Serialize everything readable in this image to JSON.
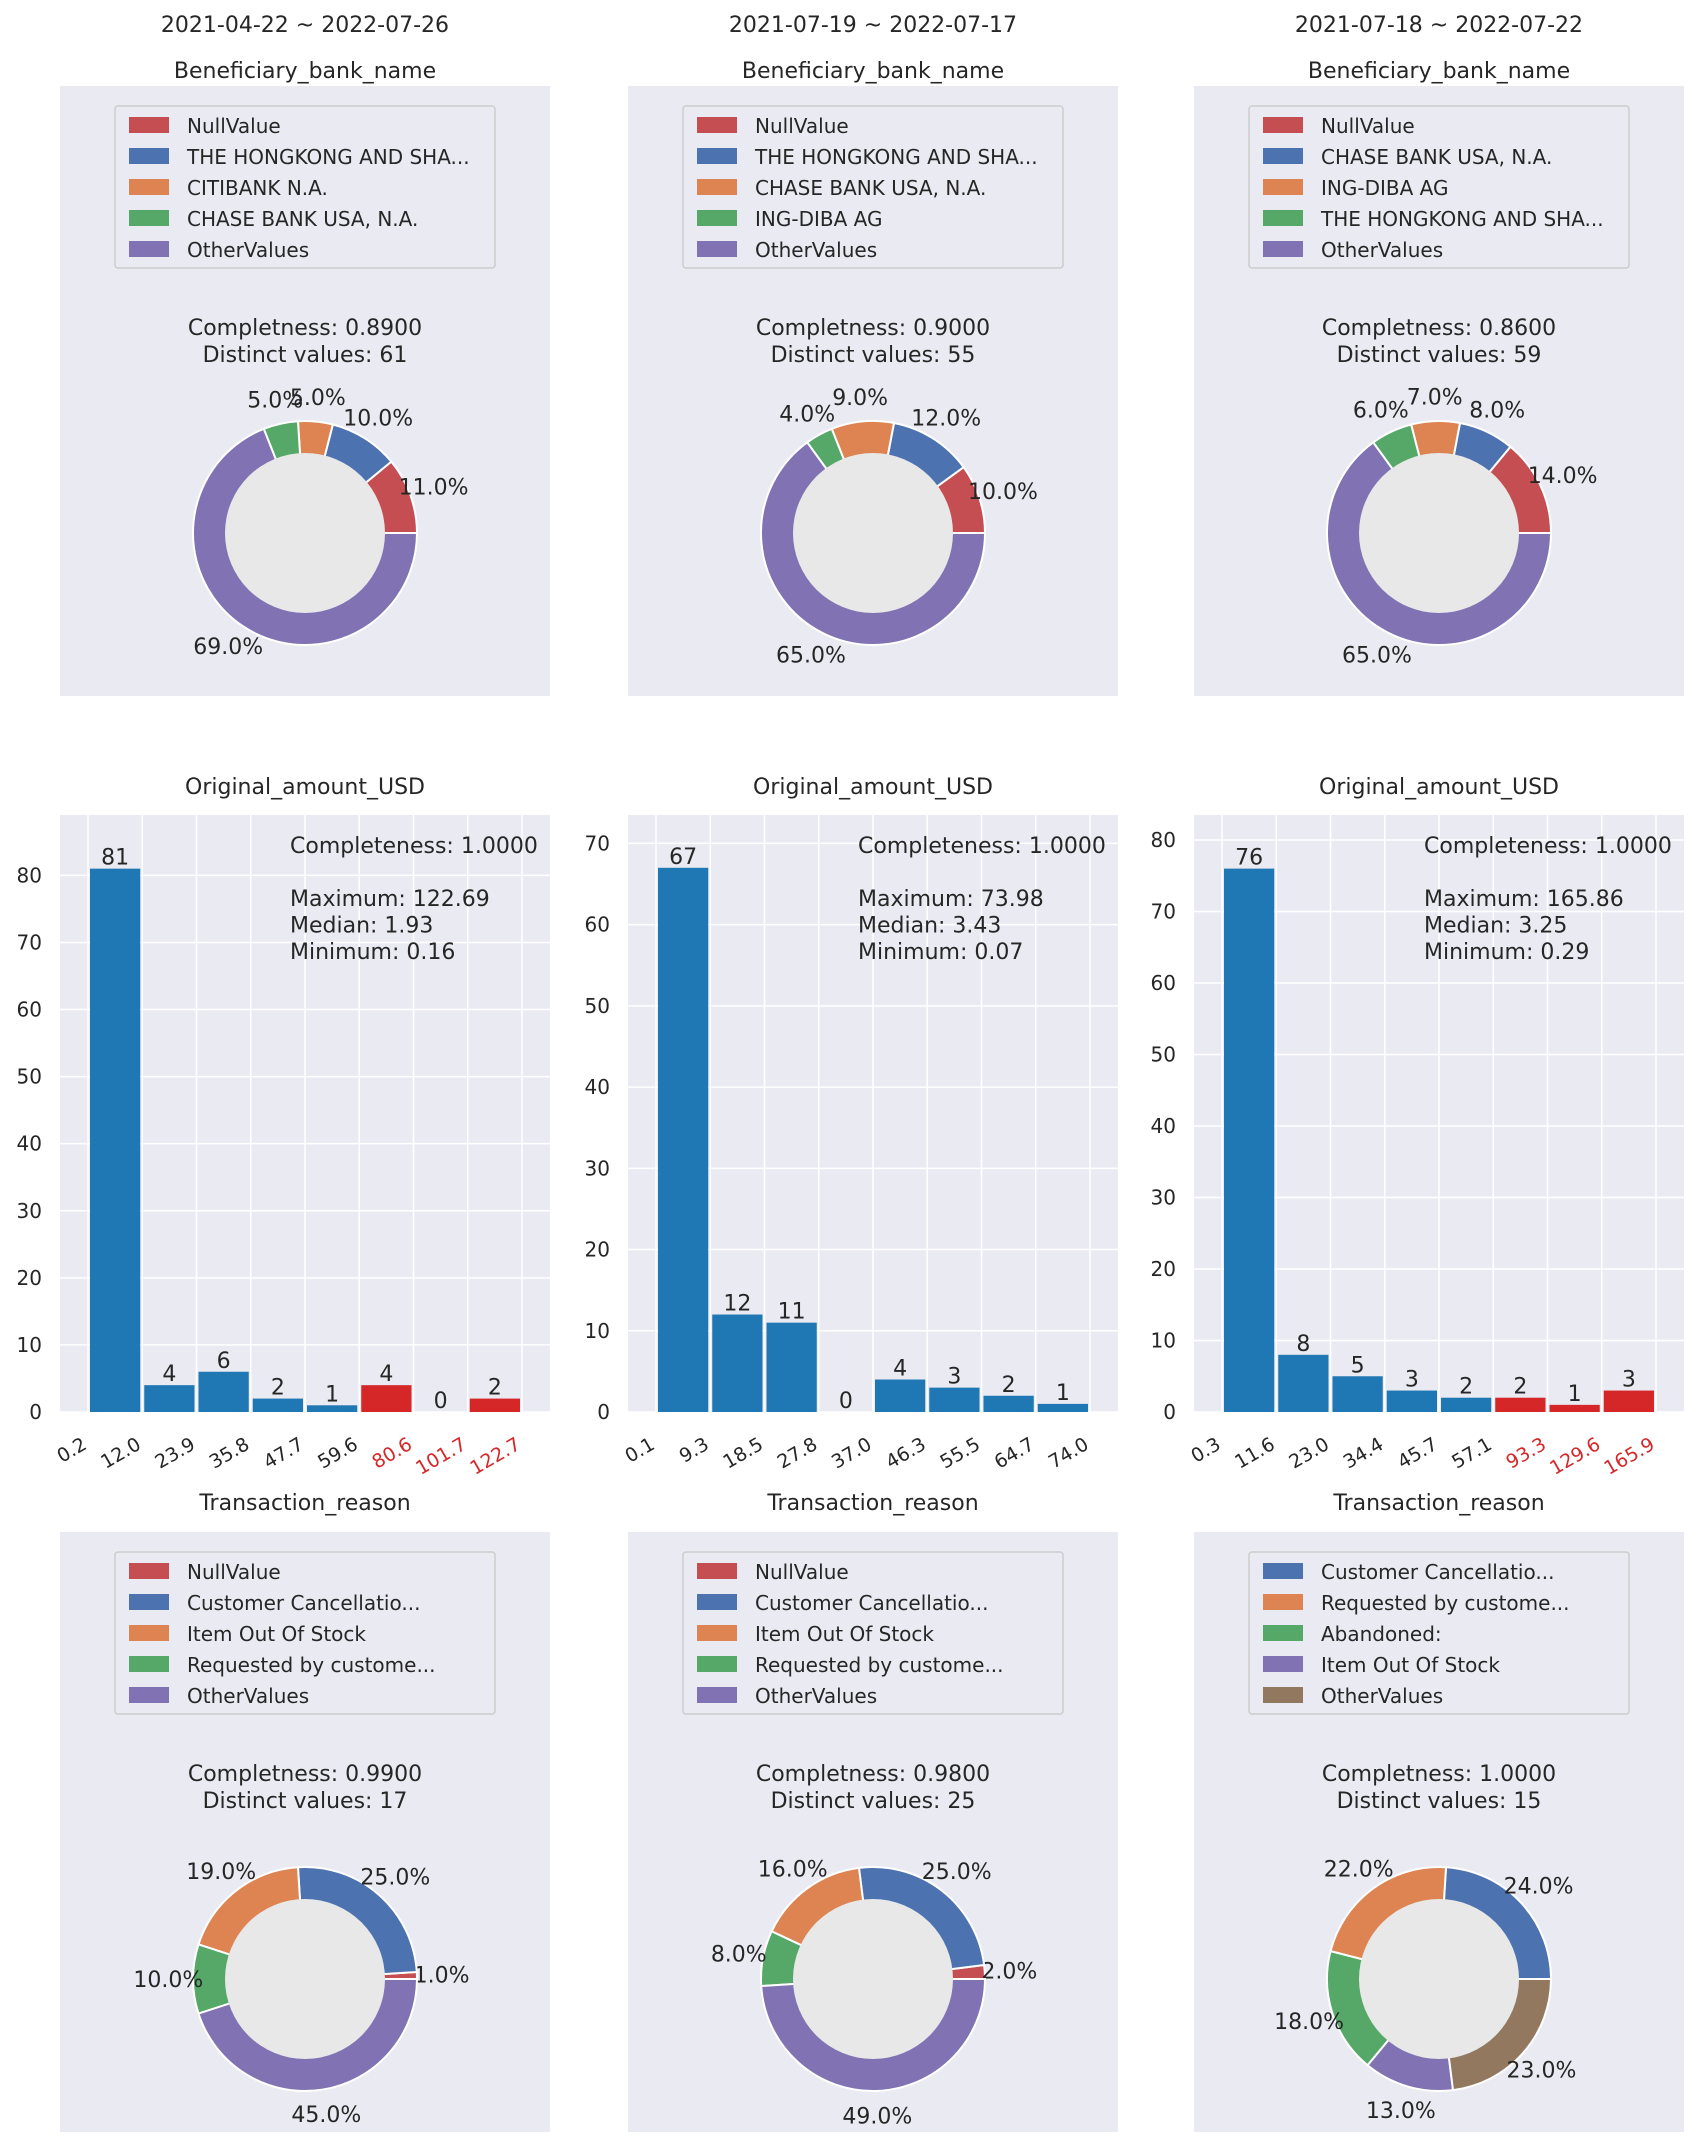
{
  "colors": {
    "panel_bg": "#eaeaf2",
    "grid": "#ffffff",
    "text": "#262626",
    "donut_hole": "#e8e8e8",
    "bar_normal": "#1f77b4",
    "bar_outlier": "#d62728",
    "tick_outlier": "#d62728",
    "categorical": [
      "#c44e52",
      "#4c72b0",
      "#dd8452",
      "#55a868",
      "#8172b3",
      "#937860"
    ]
  },
  "columns": [
    {
      "date_range": "2021-04-22 ~ 2022-07-26"
    },
    {
      "date_range": "2021-07-19 ~ 2022-07-17"
    },
    {
      "date_range": "2021-07-18 ~ 2022-07-22"
    }
  ],
  "chart_data": [
    {
      "type": "pie",
      "row": 0,
      "col": 0,
      "title": "Beneficiary_bank_name",
      "stats": [
        "Completness: 0.8900",
        "Distinct values: 61"
      ],
      "slices": [
        {
          "label": "NullValue",
          "legend": "NullValue",
          "value": 11.0,
          "color": "#c44e52",
          "pct_label": "11.0%"
        },
        {
          "label": "THE HONGKONG AND SHA...",
          "legend": "THE HONGKONG AND SHA...",
          "value": 10.0,
          "color": "#4c72b0",
          "pct_label": "10.0%"
        },
        {
          "label": "CITIBANK N.A.",
          "legend": "CITIBANK N.A.",
          "value": 5.0,
          "color": "#dd8452",
          "pct_label": "5.0%"
        },
        {
          "label": "CHASE BANK USA, N.A.",
          "legend": "CHASE BANK USA, N.A.",
          "value": 5.0,
          "color": "#55a868",
          "pct_label": "5.0%"
        },
        {
          "label": "OtherValues",
          "legend": "OtherValues",
          "value": 69.0,
          "color": "#8172b3",
          "pct_label": "69.0%"
        }
      ]
    },
    {
      "type": "pie",
      "row": 0,
      "col": 1,
      "title": "Beneficiary_bank_name",
      "stats": [
        "Completness: 0.9000",
        "Distinct values: 55"
      ],
      "slices": [
        {
          "label": "NullValue",
          "legend": "NullValue",
          "value": 10.0,
          "color": "#c44e52",
          "pct_label": "10.0%"
        },
        {
          "label": "THE HONGKONG AND SHA...",
          "legend": "THE HONGKONG AND SHA...",
          "value": 12.0,
          "color": "#4c72b0",
          "pct_label": "12.0%"
        },
        {
          "label": "CHASE BANK USA, N.A.",
          "legend": "CHASE BANK USA, N.A.",
          "value": 9.0,
          "color": "#dd8452",
          "pct_label": "9.0%"
        },
        {
          "label": "ING-DIBA AG",
          "legend": "ING-DIBA AG",
          "value": 4.0,
          "color": "#55a868",
          "pct_label": "4.0%"
        },
        {
          "label": "OtherValues",
          "legend": "OtherValues",
          "value": 65.0,
          "color": "#8172b3",
          "pct_label": "65.0%"
        }
      ]
    },
    {
      "type": "pie",
      "row": 0,
      "col": 2,
      "title": "Beneficiary_bank_name",
      "stats": [
        "Completness: 0.8600",
        "Distinct values: 59"
      ],
      "slices": [
        {
          "label": "NullValue",
          "legend": "NullValue",
          "value": 14.0,
          "color": "#c44e52",
          "pct_label": "14.0%"
        },
        {
          "label": "CHASE BANK USA, N.A.",
          "legend": "CHASE BANK USA, N.A.",
          "value": 8.0,
          "color": "#4c72b0",
          "pct_label": "8.0%"
        },
        {
          "label": "ING-DIBA AG",
          "legend": "ING-DIBA AG",
          "value": 7.0,
          "color": "#dd8452",
          "pct_label": "7.0%"
        },
        {
          "label": "THE HONGKONG AND SHA...",
          "legend": "THE HONGKONG AND SHA...",
          "value": 6.0,
          "color": "#55a868",
          "pct_label": "6.0%"
        },
        {
          "label": "OtherValues",
          "legend": "OtherValues",
          "value": 65.0,
          "color": "#8172b3",
          "pct_label": "65.0%"
        }
      ]
    },
    {
      "type": "bar",
      "row": 1,
      "col": 0,
      "title": "Original_amount_USD",
      "stats": [
        "Completeness: 1.0000",
        "",
        "Maximum: 122.69",
        "Median:    1.93",
        "Minimum:  0.16"
      ],
      "bin_edges": [
        "0.2",
        "12.0",
        "23.9",
        "35.8",
        "47.7",
        "59.6",
        "80.6",
        "101.7",
        "122.7"
      ],
      "edge_outlier": [
        false,
        false,
        false,
        false,
        false,
        false,
        true,
        true,
        true
      ],
      "counts": [
        81,
        4,
        6,
        2,
        1,
        4,
        0,
        2
      ],
      "bar_outlier": [
        false,
        false,
        false,
        false,
        false,
        true,
        true,
        true
      ],
      "ylim": [
        0,
        89
      ],
      "yticks": [
        0,
        10,
        20,
        30,
        40,
        50,
        60,
        70,
        80
      ]
    },
    {
      "type": "bar",
      "row": 1,
      "col": 1,
      "title": "Original_amount_USD",
      "stats": [
        "Completeness: 1.0000",
        "",
        "Maximum: 73.98",
        "Median:    3.43",
        "Minimum:  0.07"
      ],
      "bin_edges": [
        "0.1",
        "9.3",
        "18.5",
        "27.8",
        "37.0",
        "46.3",
        "55.5",
        "64.7",
        "74.0"
      ],
      "edge_outlier": [
        false,
        false,
        false,
        false,
        false,
        false,
        false,
        false,
        false
      ],
      "counts": [
        67,
        12,
        11,
        0,
        4,
        3,
        2,
        1
      ],
      "bar_outlier": [
        false,
        false,
        false,
        false,
        false,
        false,
        false,
        false
      ],
      "ylim": [
        0,
        73.5
      ],
      "yticks": [
        0,
        10,
        20,
        30,
        40,
        50,
        60,
        70
      ]
    },
    {
      "type": "bar",
      "row": 1,
      "col": 2,
      "title": "Original_amount_USD",
      "stats": [
        "Completeness: 1.0000",
        "",
        "Maximum: 165.86",
        "Median:    3.25",
        "Minimum:  0.29"
      ],
      "bin_edges": [
        "0.3",
        "11.6",
        "23.0",
        "34.4",
        "45.7",
        "57.1",
        "93.3",
        "129.6",
        "165.9"
      ],
      "edge_outlier": [
        false,
        false,
        false,
        false,
        false,
        false,
        true,
        true,
        true
      ],
      "counts": [
        76,
        8,
        5,
        3,
        2,
        2,
        1,
        3
      ],
      "bar_outlier": [
        false,
        false,
        false,
        false,
        false,
        true,
        true,
        true
      ],
      "ylim": [
        0,
        83.5
      ],
      "yticks": [
        0,
        10,
        20,
        30,
        40,
        50,
        60,
        70,
        80
      ]
    },
    {
      "type": "pie",
      "row": 2,
      "col": 0,
      "title": "Transaction_reason",
      "stats": [
        "Completness: 0.9900",
        "Distinct values: 17"
      ],
      "slices": [
        {
          "label": "NullValue",
          "legend": "NullValue",
          "value": 1.0,
          "color": "#c44e52",
          "pct_label": "1.0%"
        },
        {
          "label": "Customer Cancellatio...",
          "legend": "Customer Cancellatio...",
          "value": 25.0,
          "color": "#4c72b0",
          "pct_label": "25.0%"
        },
        {
          "label": "Item Out Of Stock",
          "legend": "Item Out Of Stock",
          "value": 19.0,
          "color": "#dd8452",
          "pct_label": "19.0%"
        },
        {
          "label": "Requested by custome...",
          "legend": "Requested by custome...",
          "value": 10.0,
          "color": "#55a868",
          "pct_label": "10.0%"
        },
        {
          "label": "OtherValues",
          "legend": "OtherValues",
          "value": 45.0,
          "color": "#8172b3",
          "pct_label": "45.0%"
        }
      ]
    },
    {
      "type": "pie",
      "row": 2,
      "col": 1,
      "title": "Transaction_reason",
      "stats": [
        "Completness: 0.9800",
        "Distinct values: 25"
      ],
      "slices": [
        {
          "label": "NullValue",
          "legend": "NullValue",
          "value": 2.0,
          "color": "#c44e52",
          "pct_label": "2.0%"
        },
        {
          "label": "Customer Cancellatio...",
          "legend": "Customer Cancellatio...",
          "value": 25.0,
          "color": "#4c72b0",
          "pct_label": "25.0%"
        },
        {
          "label": "Item Out Of Stock",
          "legend": "Item Out Of Stock",
          "value": 16.0,
          "color": "#dd8452",
          "pct_label": "16.0%"
        },
        {
          "label": "Requested by custome...",
          "legend": "Requested by custome...",
          "value": 8.0,
          "color": "#55a868",
          "pct_label": "8.0%"
        },
        {
          "label": "OtherValues",
          "legend": "OtherValues",
          "value": 49.0,
          "color": "#8172b3",
          "pct_label": "49.0%"
        }
      ]
    },
    {
      "type": "pie",
      "row": 2,
      "col": 2,
      "title": "Transaction_reason",
      "stats": [
        "Completness: 1.0000",
        "Distinct values: 15"
      ],
      "slices": [
        {
          "label": "Customer Cancellatio...",
          "legend": "Customer Cancellatio...",
          "value": 24.0,
          "color": "#4c72b0",
          "pct_label": "24.0%"
        },
        {
          "label": "Requested by custome...",
          "legend": "Requested by custome...",
          "value": 22.0,
          "color": "#dd8452",
          "pct_label": "22.0%"
        },
        {
          "label": "Abandoned:",
          "legend": "Abandoned:",
          "value": 18.0,
          "color": "#55a868",
          "pct_label": "18.0%"
        },
        {
          "label": "Item Out Of Stock",
          "legend": "Item Out Of Stock",
          "value": 13.0,
          "color": "#8172b3",
          "pct_label": "13.0%"
        },
        {
          "label": "OtherValues",
          "legend": "OtherValues",
          "value": 23.0,
          "color": "#937860",
          "pct_label": "23.0%"
        }
      ]
    }
  ]
}
